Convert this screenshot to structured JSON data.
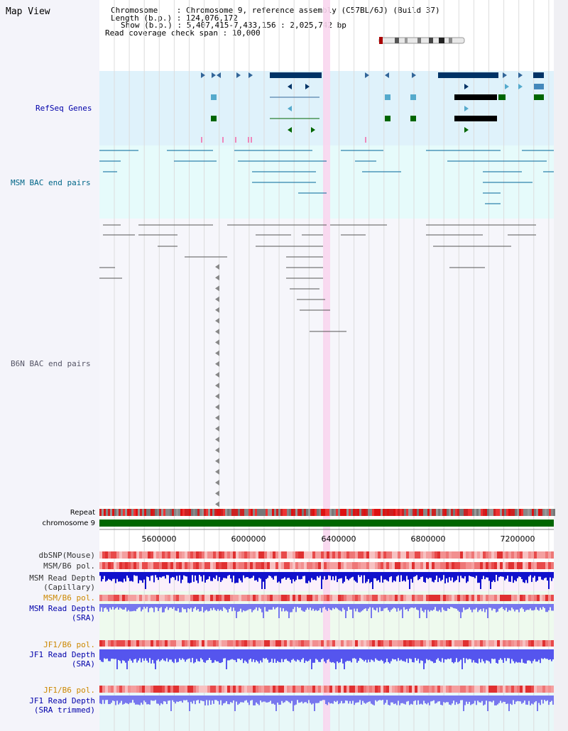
{
  "title": "Map View",
  "header": {
    "chromosome_label": "Chromosome",
    "chromosome_value": "Chromosome 9, reference assembly (C57BL/6J) (Build 37)",
    "length_label": "Length (b.p.)",
    "length_value": "124,076,172",
    "show_label": "Show (b.p.)",
    "show_value": "5,407,415-7,433,156 : 2,025,742 bp",
    "coverage_label": "Read coverage check span",
    "coverage_value": "10,000"
  },
  "tracks": {
    "refseq": "RefSeq Genes",
    "msm_bac": "MSM BAC end pairs",
    "b6n_bac": "B6N BAC end pairs",
    "repeat": "Repeat",
    "chromosome": "chromosome 9",
    "dbsnp": "dbSNP(Mouse)",
    "msm_pol": "MSM/B6 pol.",
    "msm_cap": "MSM Read Depth\n(Capillary)",
    "msm_pol2": "MSM/B6 pol.",
    "msm_sra": "MSM Read Depth\n(SRA)",
    "jf1_pol": "JF1/B6 pol.",
    "jf1_sra": "JF1 Read Depth\n(SRA)",
    "jf1_pol2": "JF1/B6 pol.",
    "jf1_trim": "JF1 Read Depth\n(SRA trimmed)"
  },
  "axis": {
    "ticks": [
      "5600000",
      "6000000",
      "6400000",
      "6800000",
      "7200000"
    ]
  },
  "colors": {
    "refseq_bg": "#dff2fb",
    "msm_bg": "#e6fbfb",
    "highlight": "#f9d6ee",
    "chrom_green": "#006600",
    "depth_blue": "#5555ee"
  }
}
